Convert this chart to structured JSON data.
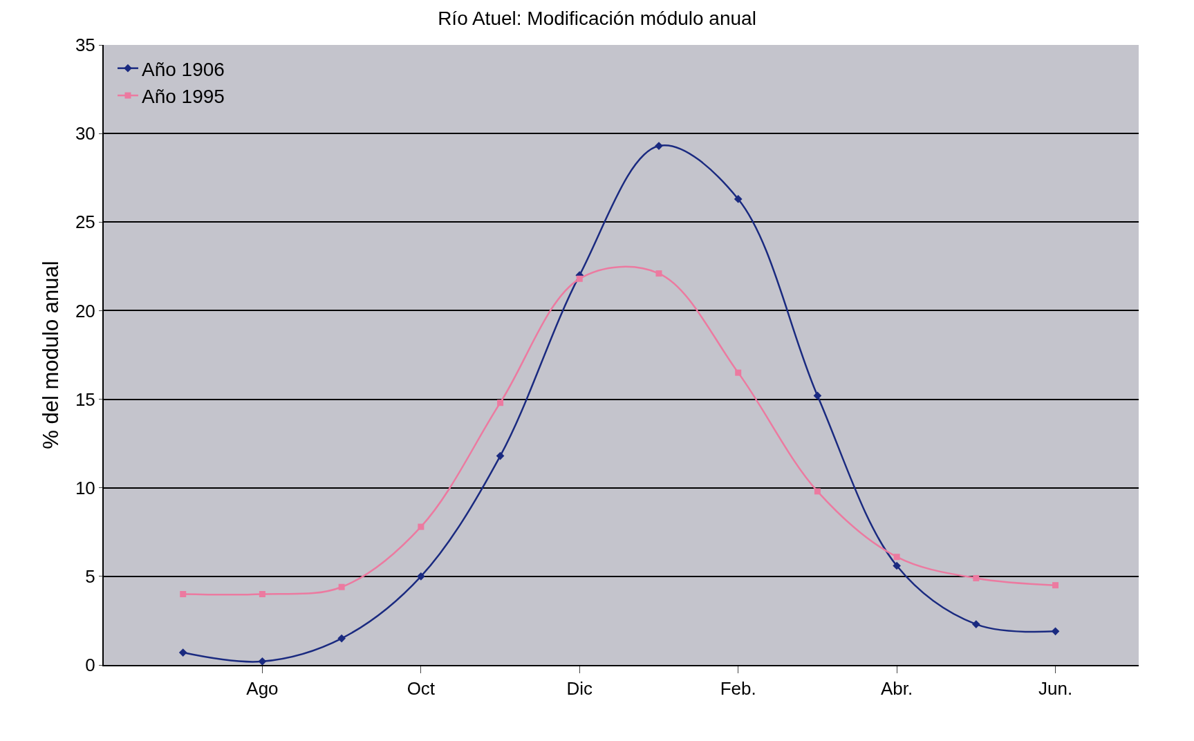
{
  "chart_data": {
    "type": "line",
    "title": "Río Atuel: Modificación módulo anual",
    "ylabel": "% del modulo anual",
    "categories": [
      null,
      "Ago",
      null,
      "Oct",
      null,
      "Dic",
      null,
      "Feb.",
      null,
      "Abr.",
      null,
      "Jun."
    ],
    "series": [
      {
        "name": "Año 1906",
        "color": "#1a2a80",
        "marker": "diamond",
        "values": [
          0.7,
          0.2,
          1.5,
          5.0,
          11.8,
          22.0,
          29.3,
          26.3,
          15.2,
          5.6,
          2.3,
          1.9
        ]
      },
      {
        "name": "Año 1995",
        "color": "#ec7aa0",
        "marker": "square",
        "values": [
          4.0,
          4.0,
          4.4,
          7.8,
          14.8,
          21.8,
          22.1,
          16.5,
          9.8,
          6.1,
          4.9,
          4.5
        ]
      }
    ],
    "ylim": [
      0,
      35
    ],
    "yticks": [
      0,
      5,
      10,
      15,
      20,
      25,
      30,
      35
    ],
    "grid": "y",
    "legend": "top left",
    "line_style": "solid"
  }
}
